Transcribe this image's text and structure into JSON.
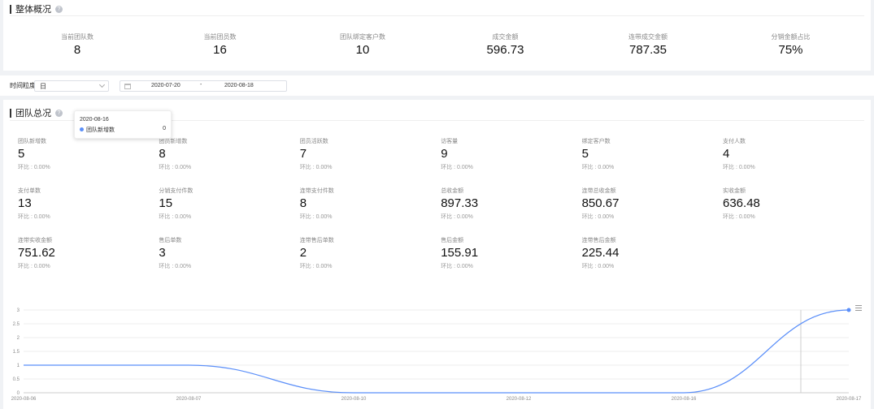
{
  "overview": {
    "title": "整体概况",
    "help": "?",
    "items": [
      {
        "label": "当前团队数",
        "value": "8"
      },
      {
        "label": "当前团员数",
        "value": "16"
      },
      {
        "label": "团队绑定客户数",
        "value": "10"
      },
      {
        "label": "成交金额",
        "value": "596.73"
      },
      {
        "label": "连带成交金额",
        "value": "787.35"
      },
      {
        "label": "分销金额占比",
        "value": "75%"
      }
    ]
  },
  "filter": {
    "label": "时间粒度:",
    "granularity": "日",
    "date_start": "2020-07-20",
    "date_sep": "-",
    "date_end": "2020-08-18"
  },
  "team": {
    "title": "团队总况",
    "help": "?",
    "metrics": [
      {
        "label": "团队新增数",
        "value": "5",
        "ratio": "环比 : 0.00%"
      },
      {
        "label": "团员新增数",
        "value": "8",
        "ratio": "环比 : 0.00%"
      },
      {
        "label": "团员活跃数",
        "value": "7",
        "ratio": "环比 : 0.00%"
      },
      {
        "label": "访客量",
        "value": "9",
        "ratio": "环比 : 0.00%"
      },
      {
        "label": "绑定客户数",
        "value": "5",
        "ratio": "环比 : 0.00%"
      },
      {
        "label": "支付人数",
        "value": "4",
        "ratio": "环比 : 0.00%"
      },
      {
        "label": "支付单数",
        "value": "13",
        "ratio": "环比 : 0.00%"
      },
      {
        "label": "分销支付件数",
        "value": "15",
        "ratio": "环比 : 0.00%"
      },
      {
        "label": "连带支付件数",
        "value": "8",
        "ratio": "环比 : 0.00%"
      },
      {
        "label": "总收金额",
        "value": "897.33",
        "ratio": "环比 : 0.00%"
      },
      {
        "label": "连带总收金额",
        "value": "850.67",
        "ratio": "环比 : 0.00%"
      },
      {
        "label": "实收金额",
        "value": "636.48",
        "ratio": "环比 : 0.00%"
      },
      {
        "label": "连带实收金额",
        "value": "751.62",
        "ratio": "环比 : 0.00%"
      },
      {
        "label": "售后单数",
        "value": "3",
        "ratio": "环比 : 0.00%"
      },
      {
        "label": "连带售后单数",
        "value": "2",
        "ratio": "环比 : 0.00%"
      },
      {
        "label": "售后金额",
        "value": "155.91",
        "ratio": "环比 : 0.00%"
      },
      {
        "label": "连带售后金额",
        "value": "225.44",
        "ratio": "环比 : 0.00%"
      }
    ]
  },
  "tooltip": {
    "date": "2020-08-16",
    "series": "团队新增数",
    "value": "0"
  },
  "colors": {
    "line": "#5b8ff9",
    "background": "#f0f2f5"
  },
  "icons": {
    "chart_menu": "menu-icon",
    "date_range": "calendar-icon",
    "select": "chevron-down-icon",
    "help": "help-icon"
  },
  "chart_data": {
    "type": "line",
    "x": [
      "2020-08-06",
      "2020-08-07",
      "2020-08-10",
      "2020-08-12",
      "2020-08-16",
      "2020-08-17"
    ],
    "series": [
      {
        "values": [
          1,
          1,
          0,
          0,
          0,
          3
        ]
      }
    ],
    "ylim": [
      0,
      3
    ],
    "yticks": [
      "0",
      "0.5",
      "1",
      "1.5",
      "2",
      "2.5",
      "3"
    ],
    "grid": true,
    "smooth": true
  }
}
